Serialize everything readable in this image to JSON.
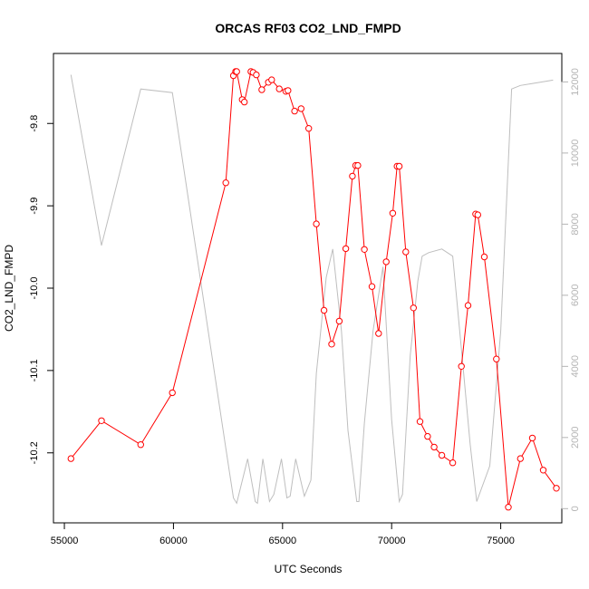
{
  "chart_data": {
    "type": "line",
    "title": "ORCAS RF03 CO2_LND_FMPD",
    "xlabel": "UTC Seconds",
    "ylabel": "CO2_LND_FMPD",
    "xlim": [
      54500,
      77800
    ],
    "ylim": [
      -10.285,
      -9.715
    ],
    "y2lim": [
      -400,
      12800
    ],
    "x_ticks": [
      55000,
      60000,
      65000,
      70000,
      75000
    ],
    "x_tick_labels": [
      "55000",
      "60000",
      "65000",
      "70000",
      "75000"
    ],
    "y_ticks": [
      -9.8,
      -9.9,
      -10.0,
      -10.1,
      -10.2
    ],
    "y_tick_labels": [
      "-9.8",
      "-9.9",
      "-10.0",
      "-10.1",
      "-10.2"
    ],
    "y2_ticks": [
      0,
      2000,
      4000,
      6000,
      8000,
      10000,
      12000
    ],
    "y2_tick_labels": [
      "0",
      "2000",
      "4000",
      "6000",
      "8000",
      "10000",
      "12000"
    ],
    "colors": {
      "primary": "#ff0000",
      "secondary": "#bebebe",
      "axis": "#000000",
      "secondary_axis": "#b4b4b4"
    },
    "series": [
      {
        "axis": "left",
        "style": "line+markers",
        "x": [
          55300,
          56700,
          58500,
          59950,
          62400,
          62750,
          62850,
          62900,
          63150,
          63250,
          63550,
          63650,
          63800,
          64050,
          64350,
          64500,
          64850,
          65150,
          65250,
          65550,
          65850,
          66200,
          66550,
          66900,
          67250,
          67600,
          67900,
          68200,
          68350,
          68450,
          68750,
          69100,
          69400,
          69750,
          70050,
          70250,
          70350,
          70650,
          71000,
          71300,
          71650,
          71950,
          72300,
          72800,
          73200,
          73500,
          73850,
          73950,
          74250,
          74800,
          75350,
          75900,
          76450,
          76950,
          77550
        ],
        "y": [
          -10.207,
          -10.161,
          -10.19,
          -10.127,
          -9.872,
          -9.742,
          -9.737,
          -9.737,
          -9.771,
          -9.774,
          -9.737,
          -9.738,
          -9.741,
          -9.759,
          -9.75,
          -9.747,
          -9.758,
          -9.761,
          -9.76,
          -9.785,
          -9.782,
          -9.806,
          -9.922,
          -10.027,
          -10.068,
          -10.04,
          -9.952,
          -9.864,
          -9.851,
          -9.851,
          -9.953,
          -9.998,
          -10.055,
          -9.968,
          -9.909,
          -9.852,
          -9.852,
          -9.956,
          -10.024,
          -10.162,
          -10.18,
          -10.193,
          -10.203,
          -10.212,
          -10.095,
          -10.021,
          -9.91,
          -9.911,
          -9.962,
          -10.086,
          -10.266,
          -10.207,
          -10.182,
          -10.221,
          -10.243
        ]
      },
      {
        "axis": "right",
        "style": "line",
        "x": [
          55300,
          56700,
          58500,
          59950,
          62400,
          62750,
          62900,
          63400,
          63750,
          63850,
          64100,
          64400,
          64600,
          64950,
          65200,
          65350,
          65600,
          66000,
          66300,
          66550,
          67000,
          67300,
          67700,
          68000,
          68400,
          68500,
          68750,
          69150,
          69600,
          70000,
          70350,
          70500,
          70850,
          71200,
          71400,
          71700,
          72300,
          72800,
          73300,
          73600,
          73900,
          74500,
          75000,
          75500,
          75900,
          76400,
          77400
        ],
        "y": [
          12200,
          7400,
          11800,
          11700,
          1700,
          300,
          150,
          1400,
          200,
          150,
          1400,
          200,
          400,
          1400,
          300,
          350,
          1400,
          350,
          800,
          3800,
          6500,
          7300,
          5000,
          2200,
          200,
          200,
          2400,
          5000,
          6800,
          2500,
          200,
          400,
          4300,
          6400,
          7100,
          7200,
          7300,
          7100,
          3800,
          1800,
          200,
          1200,
          5000,
          11800,
          11900,
          11950,
          12050
        ]
      }
    ]
  }
}
